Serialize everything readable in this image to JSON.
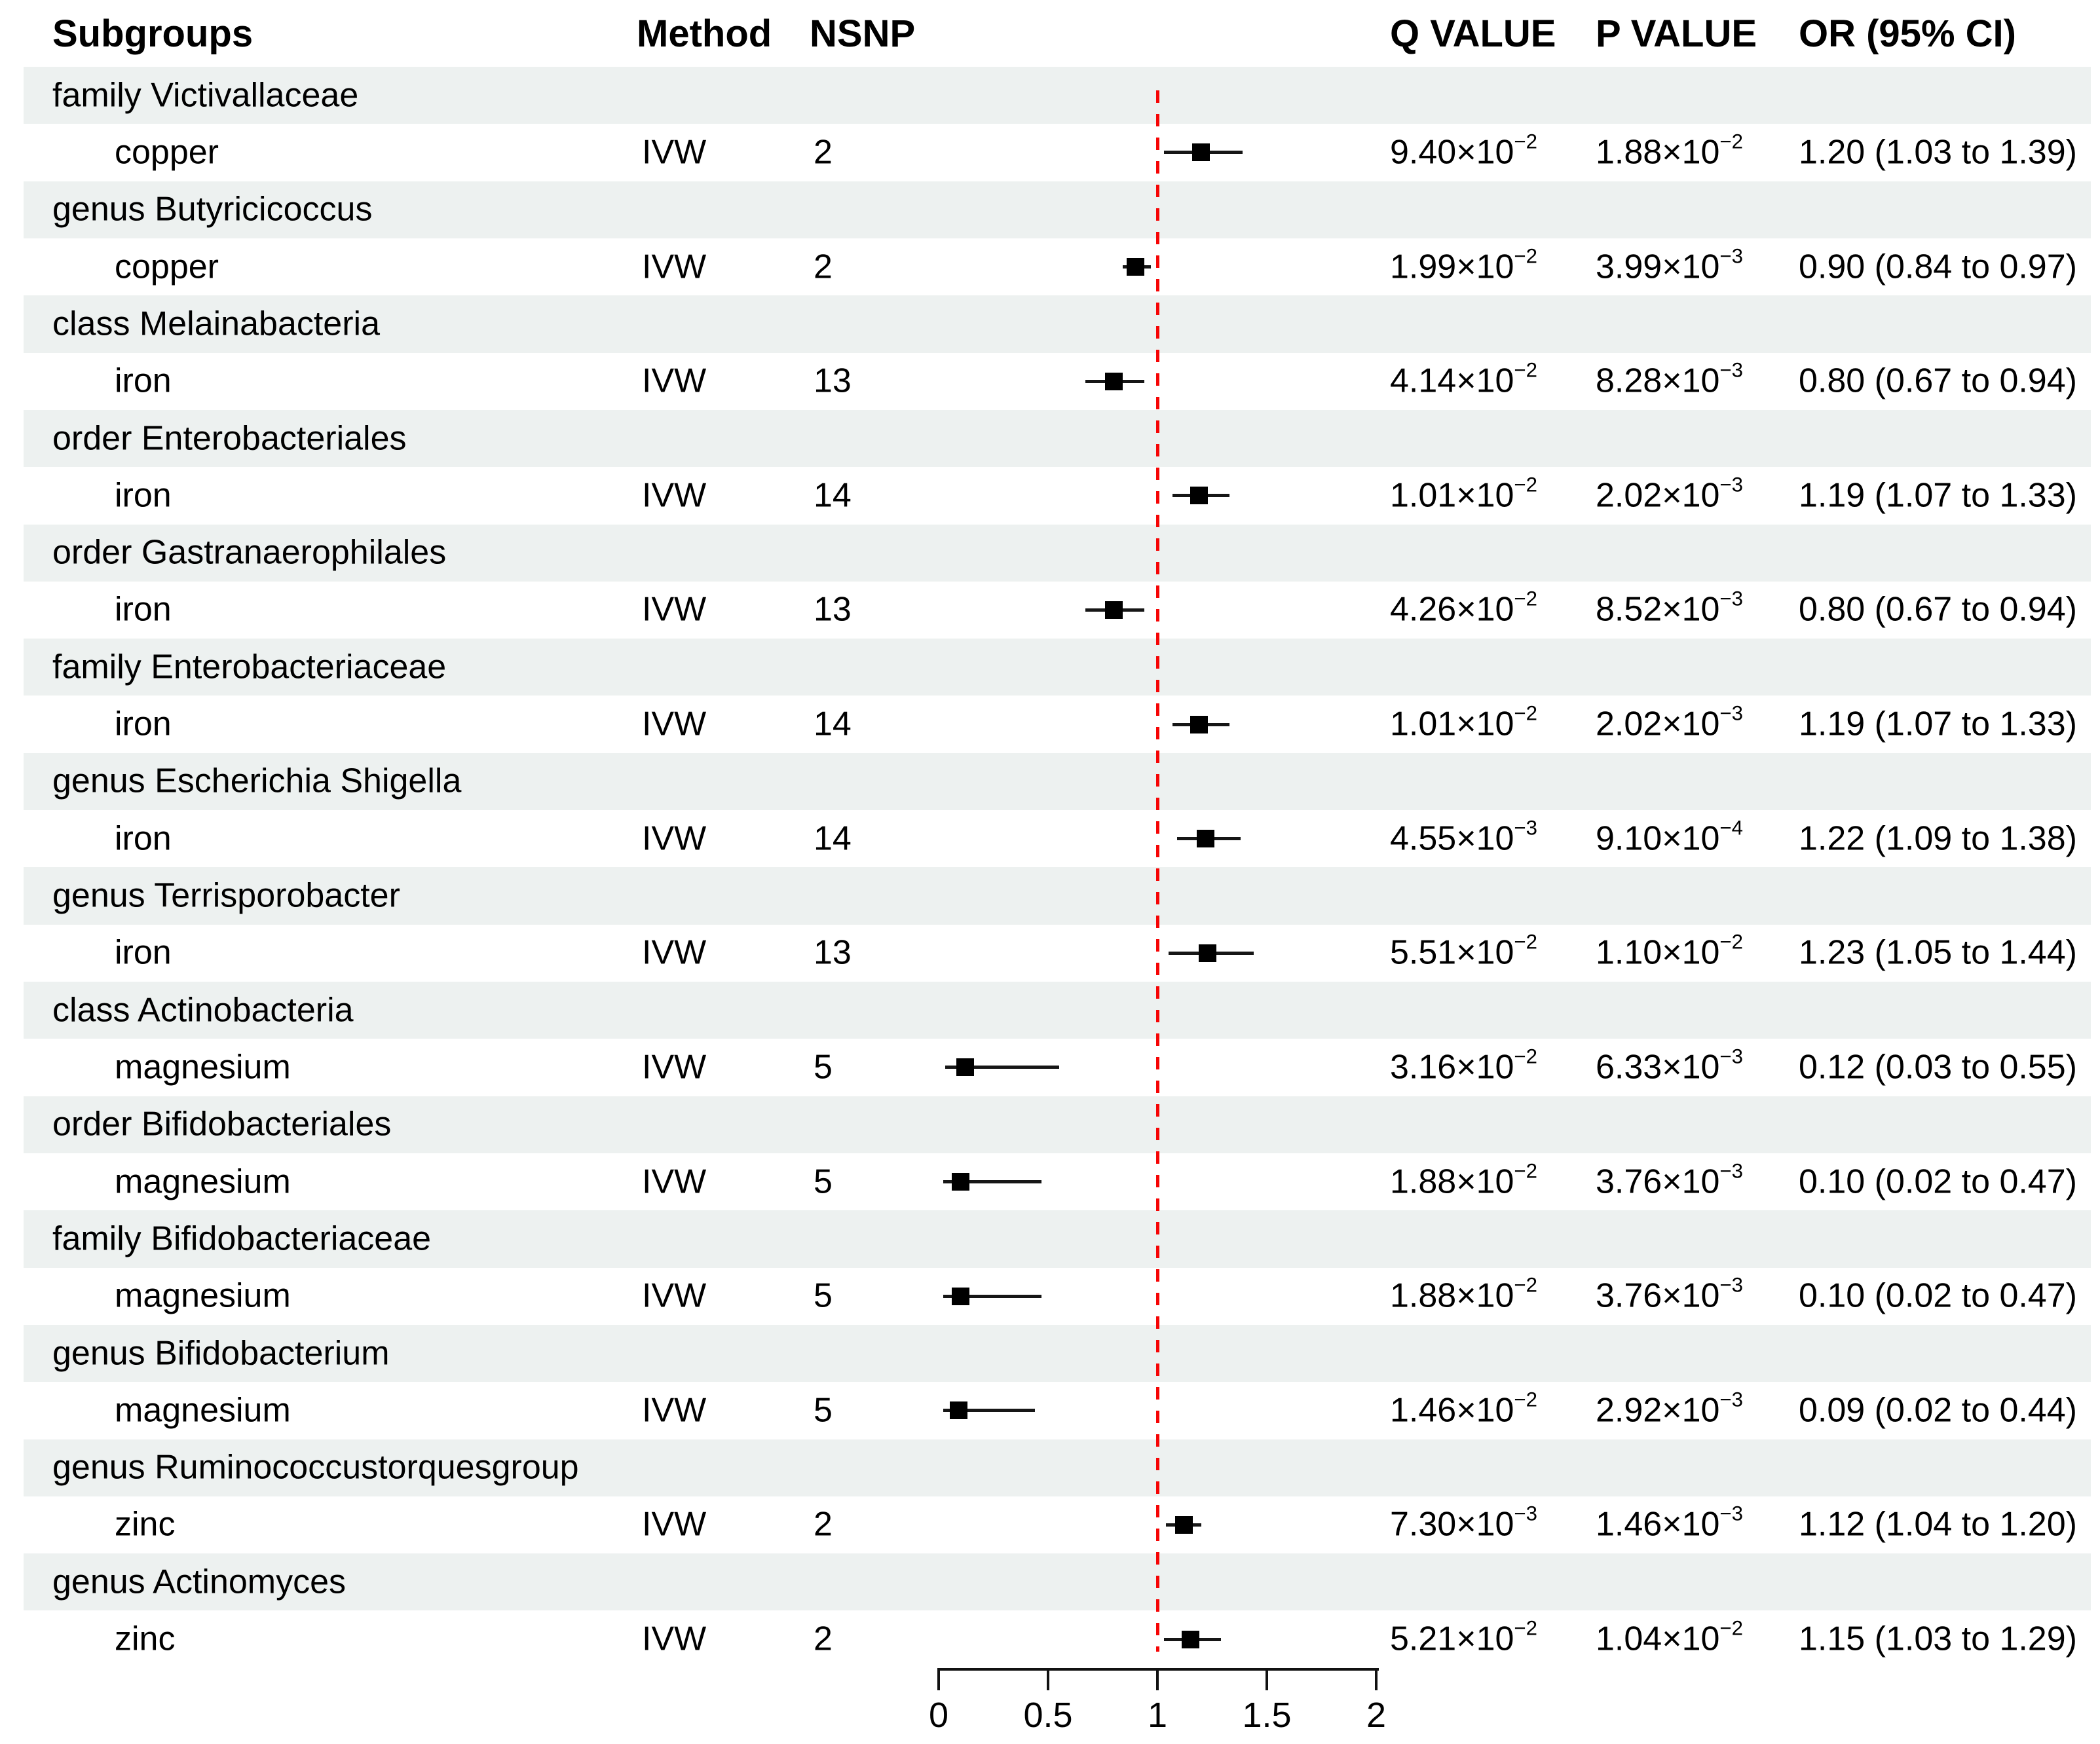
{
  "figure": {
    "columns": {
      "subgroups": "Subgroups",
      "method": "Method",
      "nsnp": "NSNP",
      "q": "Q VALUE",
      "p": "P VALUE",
      "or": "OR (95% CI)"
    },
    "rows": [
      {
        "group": "family Victivallaceae",
        "exposure": "copper",
        "method": "IVW",
        "nsnp": "2",
        "q_base": "9.40×10",
        "q_exp": "−2",
        "p_base": "1.88×10",
        "p_exp": "−2",
        "or_ci": "1.20 (1.03 to 1.39)"
      },
      {
        "group": "genus Butyricicoccus",
        "exposure": "copper",
        "method": "IVW",
        "nsnp": "2",
        "q_base": "1.99×10",
        "q_exp": "−2",
        "p_base": "3.99×10",
        "p_exp": "−3",
        "or_ci": "0.90 (0.84 to 0.97)"
      },
      {
        "group": "class Melainabacteria",
        "exposure": "iron",
        "method": "IVW",
        "nsnp": "13",
        "q_base": "4.14×10",
        "q_exp": "−2",
        "p_base": "8.28×10",
        "p_exp": "−3",
        "or_ci": "0.80 (0.67 to 0.94)"
      },
      {
        "group": "order Enterobacteriales",
        "exposure": "iron",
        "method": "IVW",
        "nsnp": "14",
        "q_base": "1.01×10",
        "q_exp": "−2",
        "p_base": "2.02×10",
        "p_exp": "−3",
        "or_ci": "1.19 (1.07 to 1.33)"
      },
      {
        "group": "order Gastranaerophilales",
        "exposure": "iron",
        "method": "IVW",
        "nsnp": "13",
        "q_base": "4.26×10",
        "q_exp": "−2",
        "p_base": "8.52×10",
        "p_exp": "−3",
        "or_ci": "0.80 (0.67 to 0.94)"
      },
      {
        "group": "family Enterobacteriaceae",
        "exposure": "iron",
        "method": "IVW",
        "nsnp": "14",
        "q_base": "1.01×10",
        "q_exp": "−2",
        "p_base": "2.02×10",
        "p_exp": "−3",
        "or_ci": "1.19 (1.07 to 1.33)"
      },
      {
        "group": "genus Escherichia Shigella",
        "exposure": "iron",
        "method": "IVW",
        "nsnp": "14",
        "q_base": "4.55×10",
        "q_exp": "−3",
        "p_base": "9.10×10",
        "p_exp": "−4",
        "or_ci": "1.22 (1.09 to 1.38)"
      },
      {
        "group": "genus Terrisporobacter",
        "exposure": "iron",
        "method": "IVW",
        "nsnp": "13",
        "q_base": "5.51×10",
        "q_exp": "−2",
        "p_base": "1.10×10",
        "p_exp": "−2",
        "or_ci": "1.23 (1.05 to 1.44)"
      },
      {
        "group": "class Actinobacteria",
        "exposure": "magnesium",
        "method": "IVW",
        "nsnp": "5",
        "q_base": "3.16×10",
        "q_exp": "−2",
        "p_base": "6.33×10",
        "p_exp": "−3",
        "or_ci": "0.12 (0.03 to 0.55)"
      },
      {
        "group": "order Bifidobacteriales",
        "exposure": "magnesium",
        "method": "IVW",
        "nsnp": "5",
        "q_base": "1.88×10",
        "q_exp": "−2",
        "p_base": "3.76×10",
        "p_exp": "−3",
        "or_ci": "0.10 (0.02 to 0.47)"
      },
      {
        "group": "family Bifidobacteriaceae",
        "exposure": "magnesium",
        "method": "IVW",
        "nsnp": "5",
        "q_base": "1.88×10",
        "q_exp": "−2",
        "p_base": "3.76×10",
        "p_exp": "−3",
        "or_ci": "0.10 (0.02 to 0.47)"
      },
      {
        "group": "genus Bifidobacterium",
        "exposure": "magnesium",
        "method": "IVW",
        "nsnp": "5",
        "q_base": "1.46×10",
        "q_exp": "−2",
        "p_base": "2.92×10",
        "p_exp": "−3",
        "or_ci": "0.09 (0.02 to 0.44)"
      },
      {
        "group": "genus Ruminococcustorquesgroup",
        "exposure": "zinc",
        "method": "IVW",
        "nsnp": "2",
        "q_base": "7.30×10",
        "q_exp": "−3",
        "p_base": "1.46×10",
        "p_exp": "−3",
        "or_ci": "1.12 (1.04 to 1.20)"
      },
      {
        "group": "genus Actinomyces",
        "exposure": "zinc",
        "method": "IVW",
        "nsnp": "2",
        "q_base": "5.21×10",
        "q_exp": "−2",
        "p_base": "1.04×10",
        "p_exp": "−2",
        "or_ci": "1.15 (1.03 to 1.29)"
      }
    ],
    "colors": {
      "stripe": "#edf1f0",
      "reference_line": "#f60505",
      "marker": "#000000"
    }
  },
  "chart_data": {
    "type": "scatter",
    "subtype": "forest-plot",
    "title": "",
    "xlabel": "",
    "xlim": [
      0,
      2
    ],
    "xticks": [
      0,
      0.5,
      1,
      1.5,
      2
    ],
    "xtick_labels": [
      "0",
      "0.5",
      "1",
      "1.5",
      "2"
    ],
    "reference_line_x": 1,
    "grid": false,
    "legend": false,
    "points": [
      {
        "subgroup": "family Victivallaceae",
        "exposure": "copper",
        "nsnp": 2,
        "q_value": "9.40×10^-2",
        "p_value": "1.88×10^-2",
        "or": 1.2,
        "ci_low": 1.03,
        "ci_high": 1.39
      },
      {
        "subgroup": "genus Butyricicoccus",
        "exposure": "copper",
        "nsnp": 2,
        "q_value": "1.99×10^-2",
        "p_value": "3.99×10^-3",
        "or": 0.9,
        "ci_low": 0.84,
        "ci_high": 0.97
      },
      {
        "subgroup": "class Melainabacteria",
        "exposure": "iron",
        "nsnp": 13,
        "q_value": "4.14×10^-2",
        "p_value": "8.28×10^-3",
        "or": 0.8,
        "ci_low": 0.67,
        "ci_high": 0.94
      },
      {
        "subgroup": "order Enterobacteriales",
        "exposure": "iron",
        "nsnp": 14,
        "q_value": "1.01×10^-2",
        "p_value": "2.02×10^-3",
        "or": 1.19,
        "ci_low": 1.07,
        "ci_high": 1.33
      },
      {
        "subgroup": "order Gastranaerophilales",
        "exposure": "iron",
        "nsnp": 13,
        "q_value": "4.26×10^-2",
        "p_value": "8.52×10^-3",
        "or": 0.8,
        "ci_low": 0.67,
        "ci_high": 0.94
      },
      {
        "subgroup": "family Enterobacteriaceae",
        "exposure": "iron",
        "nsnp": 14,
        "q_value": "1.01×10^-2",
        "p_value": "2.02×10^-3",
        "or": 1.19,
        "ci_low": 1.07,
        "ci_high": 1.33
      },
      {
        "subgroup": "genus Escherichia Shigella",
        "exposure": "iron",
        "nsnp": 14,
        "q_value": "4.55×10^-3",
        "p_value": "9.10×10^-4",
        "or": 1.22,
        "ci_low": 1.09,
        "ci_high": 1.38
      },
      {
        "subgroup": "genus Terrisporobacter",
        "exposure": "iron",
        "nsnp": 13,
        "q_value": "5.51×10^-2",
        "p_value": "1.10×10^-2",
        "or": 1.23,
        "ci_low": 1.05,
        "ci_high": 1.44
      },
      {
        "subgroup": "class Actinobacteria",
        "exposure": "magnesium",
        "nsnp": 5,
        "q_value": "3.16×10^-2",
        "p_value": "6.33×10^-3",
        "or": 0.12,
        "ci_low": 0.03,
        "ci_high": 0.55
      },
      {
        "subgroup": "order Bifidobacteriales",
        "exposure": "magnesium",
        "nsnp": 5,
        "q_value": "1.88×10^-2",
        "p_value": "3.76×10^-3",
        "or": 0.1,
        "ci_low": 0.02,
        "ci_high": 0.47
      },
      {
        "subgroup": "family Bifidobacteriaceae",
        "exposure": "magnesium",
        "nsnp": 5,
        "q_value": "1.88×10^-2",
        "p_value": "3.76×10^-3",
        "or": 0.1,
        "ci_low": 0.02,
        "ci_high": 0.47
      },
      {
        "subgroup": "genus Bifidobacterium",
        "exposure": "magnesium",
        "nsnp": 5,
        "q_value": "1.46×10^-2",
        "p_value": "2.92×10^-3",
        "or": 0.09,
        "ci_low": 0.02,
        "ci_high": 0.44
      },
      {
        "subgroup": "genus Ruminococcustorquesgroup",
        "exposure": "zinc",
        "nsnp": 2,
        "q_value": "7.30×10^-3",
        "p_value": "1.46×10^-3",
        "or": 1.12,
        "ci_low": 1.04,
        "ci_high": 1.2
      },
      {
        "subgroup": "genus Actinomyces",
        "exposure": "zinc",
        "nsnp": 2,
        "q_value": "5.21×10^-2",
        "p_value": "1.04×10^-2",
        "or": 1.15,
        "ci_low": 1.03,
        "ci_high": 1.29
      }
    ]
  }
}
